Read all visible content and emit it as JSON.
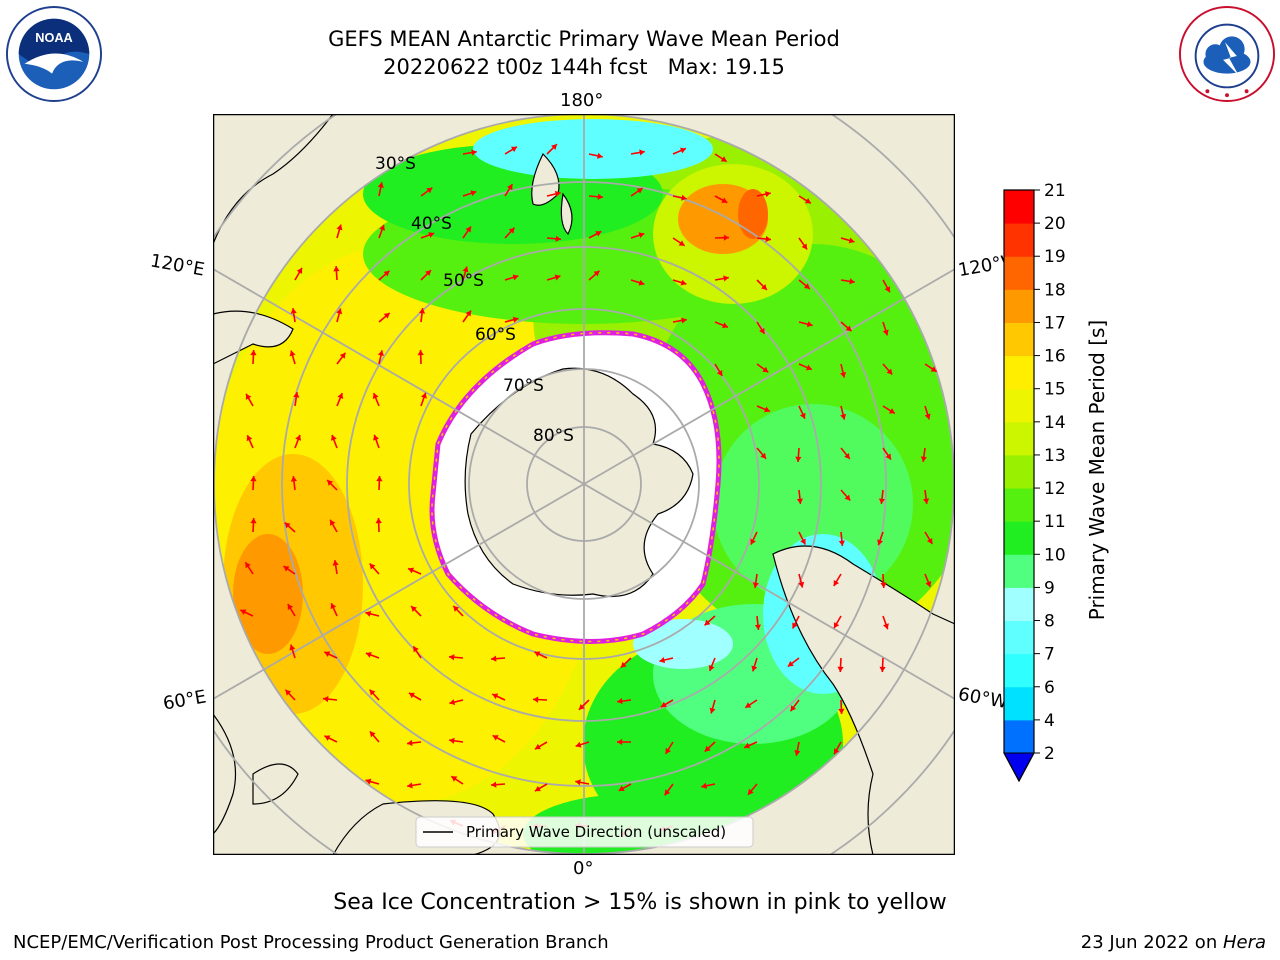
{
  "header": {
    "title_line1": "GEFS MEAN Antarctic Primary Wave Mean Period",
    "title_line2": "20220622 t00z 144h fcst   Max: 19.15"
  },
  "logos": {
    "noaa_text": "NOAA",
    "noaa_ring_text": "NATIONAL OCEANIC AND ATMOSPHERIC ADMINISTRATION · U.S. DEPARTMENT OF COMMERCE",
    "nws_ring_text": "NATIONAL WEATHER SERVICE"
  },
  "map": {
    "projection": "south-polar-stereographic",
    "lon_labels": {
      "top": "180°",
      "bottom": "0°",
      "left_upper": "120°E",
      "left_lower": "60°E",
      "right_upper": "120°W",
      "right_lower": "60°W"
    },
    "lat_labels": [
      "30°S",
      "40°S",
      "50°S",
      "60°S",
      "70°S",
      "80°S"
    ],
    "legend_label": "Primary Wave Direction (unscaled)",
    "arrow_color": "#ff0000",
    "land_color": "#efebd9",
    "ice_edge_color": "#e020e0"
  },
  "colorbar": {
    "label": "Primary Wave Mean Period [s]",
    "ticks": [
      "2",
      "4",
      "6",
      "7",
      "8",
      "9",
      "10",
      "11",
      "12",
      "13",
      "14",
      "15",
      "16",
      "17",
      "18",
      "19",
      "20",
      "21"
    ],
    "levels": [
      2,
      4,
      6,
      7,
      8,
      9,
      10,
      11,
      12,
      13,
      14,
      15,
      16,
      17,
      18,
      19,
      20,
      21
    ],
    "colors": [
      "#0070ff",
      "#00e0ff",
      "#30ffff",
      "#60ffff",
      "#a0ffff",
      "#50ff80",
      "#20ee20",
      "#55f010",
      "#99f000",
      "#ccf500",
      "#eef500",
      "#ffee00",
      "#ffc800",
      "#ff9900",
      "#ff6600",
      "#ff3300",
      "#ff0000"
    ],
    "extend_color": "#0000ee"
  },
  "ice_note": "Sea Ice Concentration > 15% is shown in pink to yellow",
  "footer": {
    "left": "NCEP/EMC/Verification Post Processing Product Generation Branch",
    "right_prefix": "23 Jun 2022 on ",
    "right_host": "Hera"
  }
}
